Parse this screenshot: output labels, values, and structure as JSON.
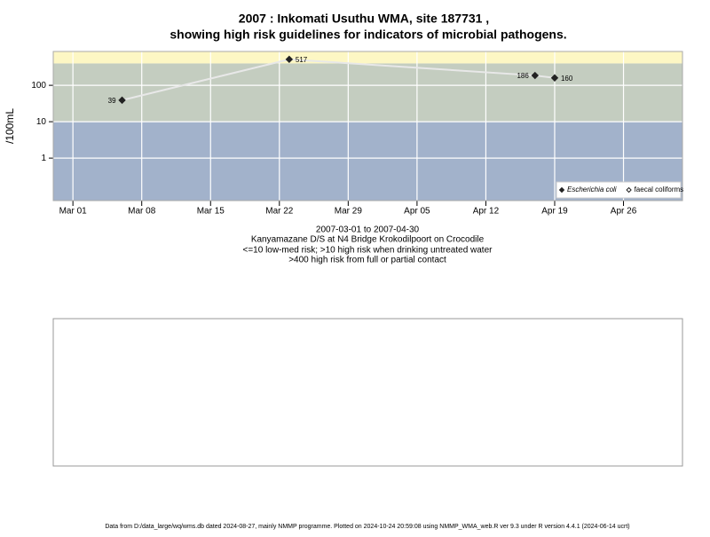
{
  "chart_data": {
    "type": "line",
    "title": "2007 : Inkomati Usuthu WMA, site 187731 ,",
    "subtitle": "showing high risk guidelines for indicators of microbial pathogens.",
    "y_label": "/100mL",
    "x_label": "2007-03-01 to 2007-04-30",
    "notes": [
      "Kanyamazane D/S at N4 Bridge Krokodilpoort on Crocodile",
      "<=10 low-med risk; >10 high risk when drinking untreated water",
      ">400 high risk from full or partial contact"
    ],
    "footer": "Data from D:/data_large/wq/wms.db dated 2024-08-27, mainly NMMP programme. Plotted on 2024-10-24 20:59:08 using NMMP_WMA_web.R ver 9.3 under R version 4.4.1 (2024-06-14 ucrt)",
    "x": [
      "2007-03-06",
      "2007-03-23",
      "2007-04-17",
      "2007-04-19"
    ],
    "series": [
      {
        "name": "Escherichia coli",
        "color": "#222222",
        "line_color": "#e8e8e8",
        "values": [
          39,
          517,
          186,
          160
        ],
        "filled": true
      },
      {
        "name": "faecal coliforms",
        "color": "#222222",
        "values": [
          null,
          null,
          null,
          null
        ],
        "filled": false
      }
    ],
    "ylim": [
      0.068,
      850
    ],
    "log_y": true,
    "yticks": [
      1,
      10,
      100
    ],
    "xlim": [
      "2007-02-27",
      "2007-05-02"
    ],
    "xticks": [
      {
        "value": "2007-03-01",
        "label": "Mar 01"
      },
      {
        "value": "2007-03-08",
        "label": "Mar 08"
      },
      {
        "value": "2007-03-15",
        "label": "Mar 15"
      },
      {
        "value": "2007-03-22",
        "label": "Mar 22"
      },
      {
        "value": "2007-03-29",
        "label": "Mar 29"
      },
      {
        "value": "2007-04-05",
        "label": "Apr 05"
      },
      {
        "value": "2007-04-12",
        "label": "Apr 12"
      },
      {
        "value": "2007-04-19",
        "label": "Apr 19"
      },
      {
        "value": "2007-04-26",
        "label": "Apr 26"
      }
    ],
    "thresholds": [
      10,
      400
    ],
    "band_colors": [
      "#a2b2cb",
      "#c4cdc0",
      "#fdf7c4"
    ],
    "grid": true,
    "legend": "bottom-right"
  }
}
